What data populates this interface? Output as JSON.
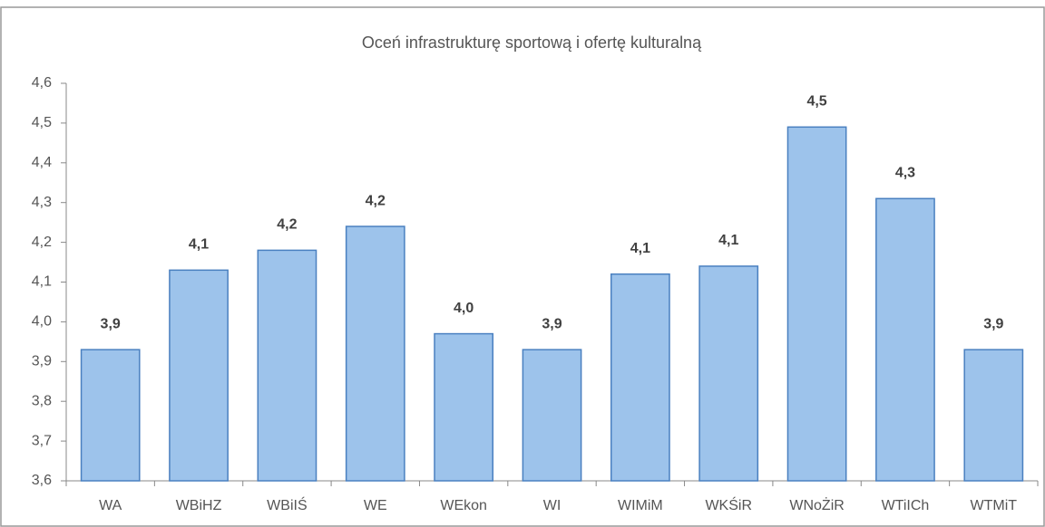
{
  "chart_data": {
    "type": "bar",
    "title": "Oceń infrastrukturę sportową i ofertę kulturalną",
    "categories": [
      "WA",
      "WBiHZ",
      "WBiIŚ",
      "WE",
      "WEkon",
      "WI",
      "WIMiM",
      "WKŚiR",
      "WNoŻiR",
      "WTiICh",
      "WTMiT"
    ],
    "values": [
      3.93,
      4.13,
      4.18,
      4.24,
      3.97,
      3.93,
      4.12,
      4.14,
      4.49,
      4.31,
      3.93
    ],
    "value_labels": [
      "3,9",
      "4,1",
      "4,2",
      "4,2",
      "4,0",
      "3,9",
      "4,1",
      "4,1",
      "4,5",
      "4,3",
      "3,9"
    ],
    "color": "#9dc3eb",
    "ylim": [
      3.6,
      4.6
    ],
    "yticks": [
      {
        "value": 3.6,
        "label": "3,6"
      },
      {
        "value": 3.7,
        "label": "3,7"
      },
      {
        "value": 3.8,
        "label": "3,8"
      },
      {
        "value": 3.9,
        "label": "3,9"
      },
      {
        "value": 4.0,
        "label": "4,0"
      },
      {
        "value": 4.1,
        "label": "4,1"
      },
      {
        "value": 4.2,
        "label": "4,2"
      },
      {
        "value": 4.3,
        "label": "4,3"
      },
      {
        "value": 4.4,
        "label": "4,4"
      },
      {
        "value": 4.5,
        "label": "4,5"
      },
      {
        "value": 4.6,
        "label": "4,6"
      }
    ],
    "grid": false
  }
}
